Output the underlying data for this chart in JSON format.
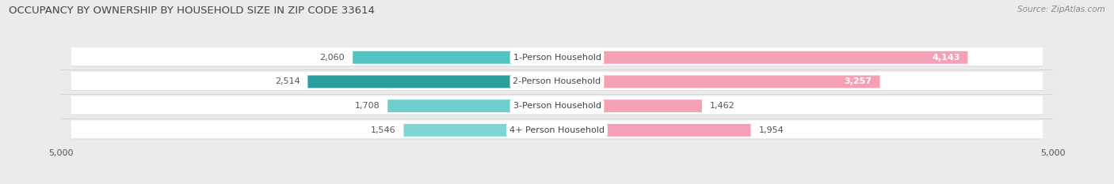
{
  "title": "OCCUPANCY BY OWNERSHIP BY HOUSEHOLD SIZE IN ZIP CODE 33614",
  "source": "Source: ZipAtlas.com",
  "categories": [
    "1-Person Household",
    "2-Person Household",
    "3-Person Household",
    "4+ Person Household"
  ],
  "owner_values": [
    2060,
    2514,
    1708,
    1546
  ],
  "renter_values": [
    4143,
    3257,
    1462,
    1954
  ],
  "owner_colors": [
    "#4EC5C1",
    "#2B9E9E",
    "#6ECECE",
    "#7DD6D2"
  ],
  "renter_color": "#F4A0B5",
  "background_color": "#EBEBEB",
  "row_bg_color": "#F5F5F5",
  "axis_max": 5000,
  "title_fontsize": 9.5,
  "source_fontsize": 7.5,
  "value_fontsize": 8,
  "category_fontsize": 8,
  "axis_label_fontsize": 8
}
